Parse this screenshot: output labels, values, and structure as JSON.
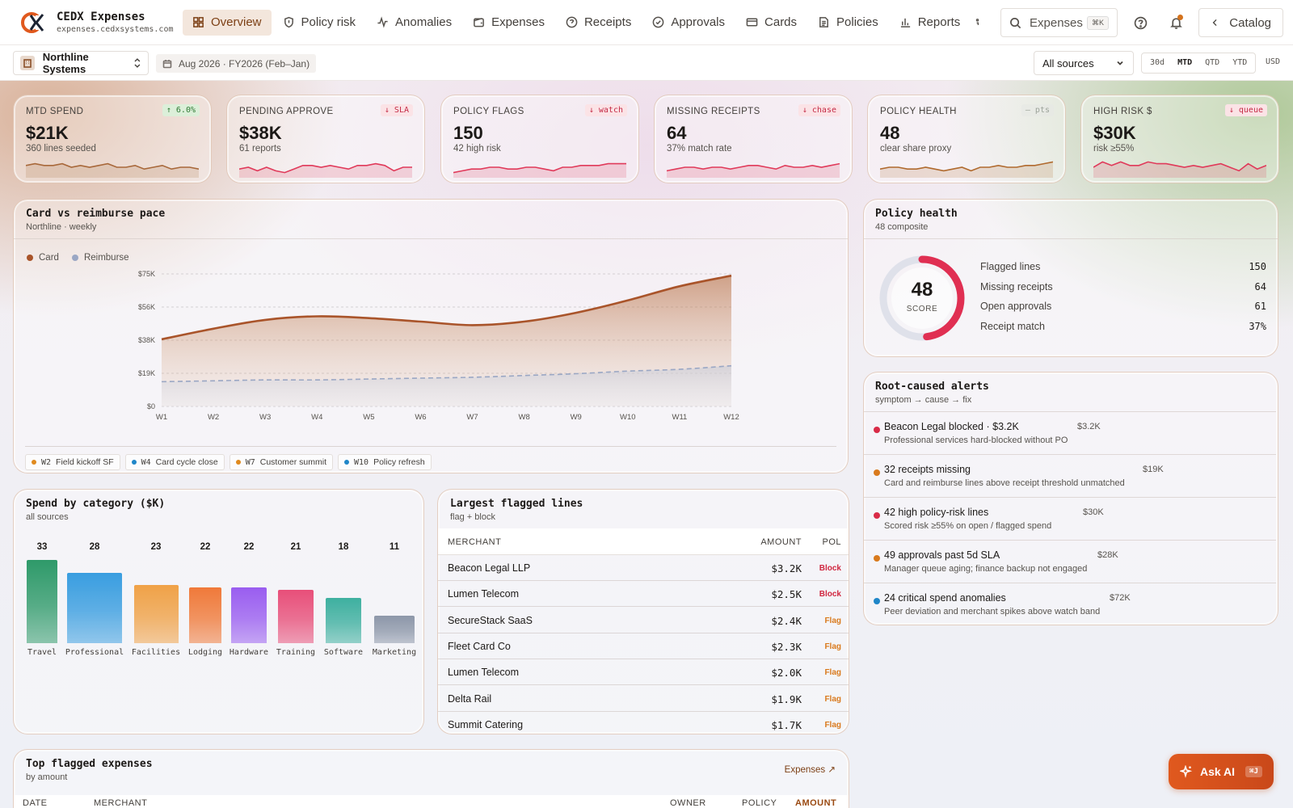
{
  "app": {
    "title": "CEDX Expenses",
    "domain": "expenses.cedxsystems.com"
  },
  "nav": {
    "items": [
      {
        "label": "Overview",
        "icon": "grid-icon",
        "active": true
      },
      {
        "label": "Policy risk",
        "icon": "shield-icon",
        "active": false
      },
      {
        "label": "Anomalies",
        "icon": "pulse-icon",
        "active": false
      },
      {
        "label": "Expenses",
        "icon": "wallet-icon",
        "active": false
      },
      {
        "label": "Receipts",
        "icon": "help-circle-icon",
        "active": false
      },
      {
        "label": "Approvals",
        "icon": "check-circle-icon",
        "active": false
      },
      {
        "label": "Cards",
        "icon": "credit-card-icon",
        "active": false
      },
      {
        "label": "Policies",
        "icon": "document-icon",
        "active": false
      },
      {
        "label": "Reports",
        "icon": "bar-chart-icon",
        "active": false
      }
    ],
    "search_label": "Expenses",
    "search_shortcut": "⌘K",
    "catalog_label": "Catalog"
  },
  "subbar": {
    "org": "Northline Systems",
    "date_range": "Aug 2026 · FY2026 (Feb–Jan)",
    "source": "All sources",
    "ranges": [
      "30d",
      "MTD",
      "QTD",
      "YTD"
    ],
    "active_range": "MTD",
    "currency": "USD"
  },
  "kpis": [
    {
      "label": "MTD SPEND",
      "value": "$21K",
      "sub": "360 lines seeded",
      "badge": "↑ 6.0%",
      "badge_tone": "up",
      "spark_color": "#a8683a",
      "spark": [
        6,
        7,
        6,
        6,
        7,
        5,
        6,
        5,
        6,
        7,
        5,
        5,
        6,
        4,
        5,
        6,
        4,
        5,
        5,
        4
      ]
    },
    {
      "label": "PENDING APPROVE",
      "value": "$38K",
      "sub": "61 reports",
      "badge": "↓ SLA",
      "badge_tone": "down",
      "spark_color": "#e03a5a",
      "spark": [
        4,
        5,
        3,
        5,
        3,
        2,
        4,
        6,
        6,
        5,
        6,
        5,
        4,
        6,
        6,
        7,
        6,
        3,
        5,
        5
      ]
    },
    {
      "label": "POLICY FLAGS",
      "value": "150",
      "sub": "42 high risk",
      "badge": "↓ watch",
      "badge_tone": "down",
      "spark_color": "#e03a5a",
      "spark": [
        2,
        3,
        4,
        4,
        5,
        5,
        4,
        4,
        5,
        5,
        4,
        3,
        5,
        5,
        6,
        6,
        6,
        7,
        7,
        7
      ]
    },
    {
      "label": "MISSING RECEIPTS",
      "value": "64",
      "sub": "37% match rate",
      "badge": "↓ chase",
      "badge_tone": "down",
      "spark_color": "#e03a5a",
      "spark": [
        3,
        4,
        5,
        5,
        4,
        5,
        5,
        4,
        5,
        6,
        6,
        5,
        4,
        6,
        5,
        5,
        6,
        5,
        6,
        7
      ]
    },
    {
      "label": "POLICY HEALTH",
      "value": "48",
      "sub": "clear share proxy",
      "badge": "— pts",
      "badge_tone": "neutral",
      "spark_color": "#b06a2e",
      "spark": [
        4,
        5,
        5,
        4,
        4,
        5,
        4,
        3,
        4,
        5,
        3,
        5,
        5,
        6,
        5,
        5,
        6,
        6,
        7,
        8
      ]
    },
    {
      "label": "HIGH RISK $",
      "value": "$30K",
      "sub": "risk ≥55%",
      "badge": "↓ queue",
      "badge_tone": "down",
      "spark_color": "#e03a5a",
      "spark": [
        5,
        8,
        6,
        8,
        6,
        6,
        8,
        7,
        7,
        6,
        5,
        6,
        5,
        6,
        7,
        5,
        3,
        7,
        4,
        6
      ]
    }
  ],
  "pace_chart": {
    "title": "Card vs reimburse pace",
    "subtitle": "Northline · weekly",
    "chart_data": {
      "type": "area",
      "categories": [
        "W1",
        "W2",
        "W3",
        "W4",
        "W5",
        "W6",
        "W7",
        "W8",
        "W9",
        "W10",
        "W11",
        "W12"
      ],
      "series": [
        {
          "name": "Card",
          "color": "#a9542a",
          "values": [
            38,
            44,
            49,
            51,
            50,
            48,
            46,
            48,
            53,
            60,
            68,
            74
          ]
        },
        {
          "name": "Reimburse",
          "color": "#9aa7c4",
          "values": [
            14,
            14.5,
            15,
            15,
            15.5,
            16,
            16.5,
            17.5,
            18.5,
            20,
            21,
            23
          ]
        }
      ],
      "yticks": [
        "$0",
        "$19K",
        "$38K",
        "$56K",
        "$75K"
      ],
      "ylim": [
        0,
        75
      ],
      "grid": true,
      "legend": "top-left"
    },
    "events": [
      {
        "week": "W2",
        "label": "Field kickoff SF",
        "color": "#e08a1e"
      },
      {
        "week": "W4",
        "label": "Card cycle close",
        "color": "#1f86c8"
      },
      {
        "week": "W7",
        "label": "Customer summit",
        "color": "#e08a1e"
      },
      {
        "week": "W10",
        "label": "Policy refresh",
        "color": "#1f86c8"
      }
    ]
  },
  "policy_health": {
    "title": "Policy health",
    "subtitle": "48 composite",
    "score": "48",
    "score_label": "SCORE",
    "score_fraction": 0.48,
    "rows": [
      {
        "label": "Flagged lines",
        "value": "150"
      },
      {
        "label": "Missing receipts",
        "value": "64"
      },
      {
        "label": "Open approvals",
        "value": "61"
      },
      {
        "label": "Receipt match",
        "value": "37%"
      }
    ]
  },
  "alerts": {
    "title": "Root-caused alerts",
    "subtitle": "symptom → cause → fix",
    "items": [
      {
        "title": "Beacon Legal blocked · $3.2K",
        "amount": "$3.2K",
        "desc": "Professional services hard-blocked without PO",
        "color": "#d92b47"
      },
      {
        "title": "32 receipts missing",
        "amount": "$19K",
        "desc": "Card and reimburse lines above receipt threshold unmatched",
        "color": "#d97a1d"
      },
      {
        "title": "42 high policy-risk lines",
        "amount": "$30K",
        "desc": "Scored risk ≥55% on open / flagged spend",
        "color": "#d92b47"
      },
      {
        "title": "49 approvals past 5d SLA",
        "amount": "$28K",
        "desc": "Manager queue aging; finance backup not engaged",
        "color": "#d97a1d"
      },
      {
        "title": "24 critical spend anomalies",
        "amount": "$72K",
        "desc": "Peer deviation and merchant spikes above watch band",
        "color": "#1f86c8"
      }
    ]
  },
  "category_chart": {
    "title": "Spend by category ($K)",
    "subtitle": "all sources",
    "chart_data": {
      "type": "bar",
      "categories": [
        "Travel",
        "Professional",
        "Facilities",
        "Lodging",
        "Hardware",
        "Training",
        "Software",
        "Marketing"
      ],
      "values": [
        33,
        28,
        23,
        22,
        22,
        21,
        18,
        11
      ],
      "colors": [
        "#2f9a6a",
        "#3a9ee0",
        "#f0a248",
        "#f07a3a",
        "#9a5ef0",
        "#e8507a",
        "#3fb0a0",
        "#8e98aa"
      ],
      "ylim": [
        0,
        33
      ]
    }
  },
  "flagged_lines": {
    "title": "Largest flagged lines",
    "subtitle": "flag + block",
    "columns": [
      "MERCHANT",
      "AMOUNT",
      "POL"
    ],
    "rows": [
      {
        "merchant": "Beacon Legal LLP",
        "amount": "$3.2K",
        "pol": "Block"
      },
      {
        "merchant": "Lumen Telecom",
        "amount": "$2.5K",
        "pol": "Block"
      },
      {
        "merchant": "SecureStack SaaS",
        "amount": "$2.4K",
        "pol": "Flag"
      },
      {
        "merchant": "Fleet Card Co",
        "amount": "$2.3K",
        "pol": "Flag"
      },
      {
        "merchant": "Lumen Telecom",
        "amount": "$2.0K",
        "pol": "Flag"
      },
      {
        "merchant": "Delta Rail",
        "amount": "$1.9K",
        "pol": "Flag"
      },
      {
        "merchant": "Summit Catering",
        "amount": "$1.7K",
        "pol": "Flag"
      }
    ]
  },
  "top_flagged": {
    "title": "Top flagged expenses",
    "subtitle": "by amount",
    "link": "Expenses ↗",
    "columns": [
      "DATE",
      "MERCHANT",
      "OWNER",
      "POLICY",
      "AMOUNT"
    ]
  },
  "ask_ai": {
    "label": "Ask AI",
    "shortcut": "⌘J"
  }
}
